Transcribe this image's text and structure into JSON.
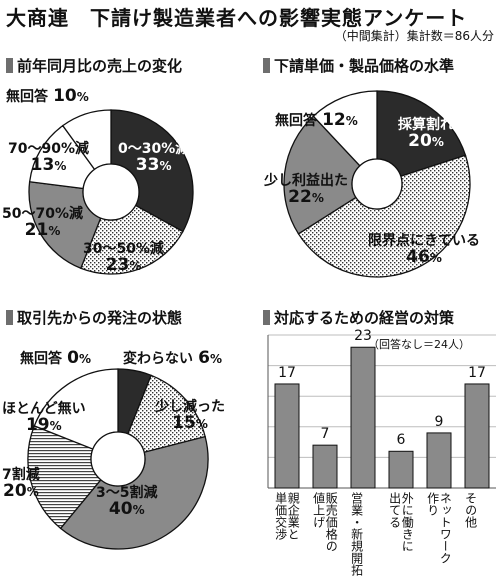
{
  "header": {
    "title": "大商連　下請け製造業者への影響実態アンケート",
    "note": "（中間集計）集計数＝86人分"
  },
  "chart_data": [
    {
      "type": "pie",
      "title": "前年同月比の売上の変化",
      "categories": [
        "0〜30%減",
        "30〜50%減",
        "50〜70%減",
        "70〜90%減",
        "無回答"
      ],
      "values": [
        33,
        23,
        21,
        13,
        10
      ],
      "pct_sign": "%",
      "colors": [
        "dark",
        "dots",
        "gray",
        "white",
        "white"
      ]
    },
    {
      "type": "pie",
      "title": "下請単価・製品価格の水準",
      "categories": [
        "採算割れ",
        "限界点にきている",
        "少し利益出た",
        "無回答"
      ],
      "values": [
        20,
        46,
        22,
        12
      ],
      "pct_sign": "%",
      "colors": [
        "dark",
        "dots",
        "gray",
        "white"
      ]
    },
    {
      "type": "pie",
      "title": "取引先からの発注の状態",
      "categories": [
        "変わらない",
        "少し減った",
        "3〜5割減",
        "7割減",
        "ほとんど無い",
        "無回答"
      ],
      "values": [
        6,
        15,
        40,
        20,
        19,
        0
      ],
      "pct_sign": "%",
      "colors": [
        "dark",
        "dots",
        "gray",
        "hstripe",
        "white",
        "white"
      ]
    },
    {
      "type": "bar",
      "title": "対応するための経営の対策",
      "note": "（回答なし＝24人）",
      "categories": [
        "親企業と\n単価交渉",
        "販売価格の\n値上げ",
        "営業・新規開拓",
        "外に働きに\n出てる",
        "ネットワーク\n作り",
        "その他"
      ],
      "values": [
        17,
        7,
        23,
        6,
        9,
        17
      ],
      "ylim": [
        0,
        25
      ],
      "grid": true
    }
  ]
}
